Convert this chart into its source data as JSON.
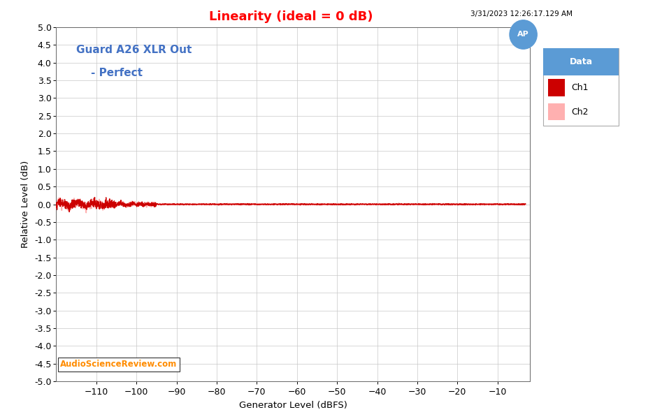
{
  "title": "Linearity (ideal = 0 dB)",
  "title_color": "#FF0000",
  "xlabel": "Generator Level (dBFS)",
  "ylabel": "Relative Level (dB)",
  "xlim": [
    -120,
    -2
  ],
  "ylim": [
    -5.0,
    5.0
  ],
  "xticks": [
    -110,
    -100,
    -90,
    -80,
    -70,
    -60,
    -50,
    -40,
    -30,
    -20,
    -10
  ],
  "yticks": [
    -5.0,
    -4.5,
    -4.0,
    -3.5,
    -3.0,
    -2.5,
    -2.0,
    -1.5,
    -1.0,
    -0.5,
    0.0,
    0.5,
    1.0,
    1.5,
    2.0,
    2.5,
    3.0,
    3.5,
    4.0,
    4.5,
    5.0
  ],
  "annotation_line1": "Guard A26 XLR Out",
  "annotation_line2": "    - Perfect",
  "annotation_color": "#4472C4",
  "timestamp": "3/31/2023 12:26:17.129 AM",
  "watermark": "AudioScienceReview.com",
  "watermark_color": "#FF8C00",
  "ch1_color": "#CC0000",
  "ch2_color": "#FFB0B0",
  "legend_header_bg": "#5B9BD5",
  "background_color": "#FFFFFF",
  "grid_color": "#C8C8C8",
  "ap_circle_color": "#5B9BD5"
}
